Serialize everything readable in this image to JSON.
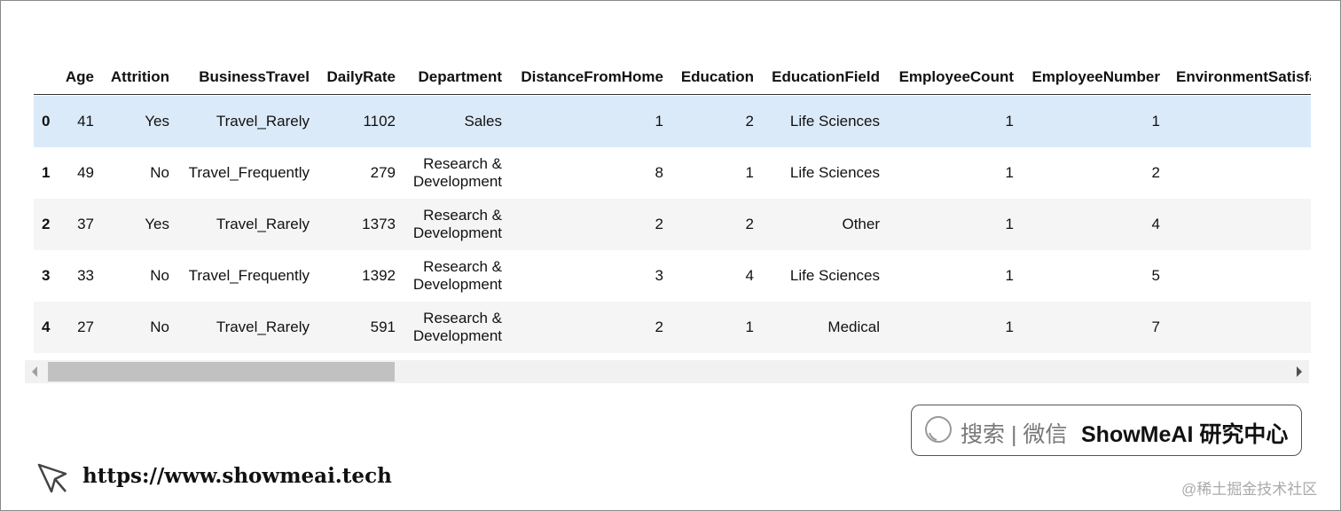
{
  "table": {
    "columns": [
      "Age",
      "Attrition",
      "BusinessTravel",
      "DailyRate",
      "Department",
      "DistanceFromHome",
      "Education",
      "EducationField",
      "EmployeeCount",
      "EmployeeNumber",
      "EnvironmentSatisfaction"
    ],
    "rows": [
      [
        0,
        41,
        "Yes",
        "Travel_Rarely",
        1102,
        "Sales",
        1,
        2,
        "Life Sciences",
        1,
        1
      ],
      [
        1,
        49,
        "No",
        "Travel_Frequently",
        279,
        "Research & Development",
        8,
        1,
        "Life Sciences",
        1,
        2
      ],
      [
        2,
        37,
        "Yes",
        "Travel_Rarely",
        1373,
        "Research & Development",
        2,
        2,
        "Other",
        1,
        4
      ],
      [
        3,
        33,
        "No",
        "Travel_Frequently",
        1392,
        "Research & Development",
        3,
        4,
        "Life Sciences",
        1,
        5
      ],
      [
        4,
        27,
        "No",
        "Travel_Rarely",
        591,
        "Research & Development",
        2,
        1,
        "Medical",
        1,
        7
      ]
    ]
  },
  "search": {
    "hint": "搜索 | 微信",
    "brand": "ShowMeAI 研究中心"
  },
  "url": "https://www.showmeai.tech",
  "watermark": "@稀土掘金技术社区"
}
